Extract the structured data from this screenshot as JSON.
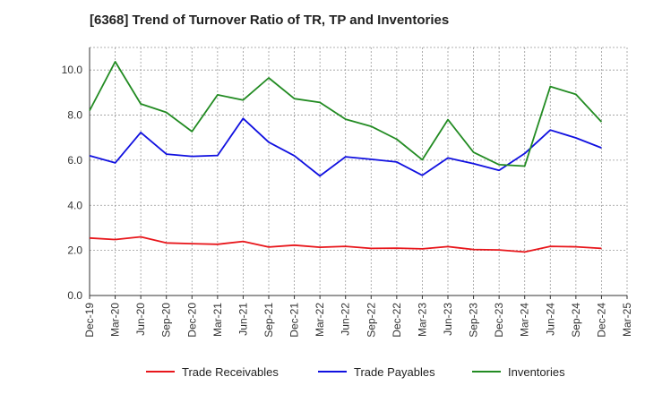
{
  "chart_data": {
    "type": "line",
    "title": "[6368]  Trend of Turnover Ratio of TR, TP and Inventories",
    "xlabel": "",
    "ylabel": "",
    "categories": [
      "Dec-19",
      "Mar-20",
      "Jun-20",
      "Sep-20",
      "Dec-20",
      "Mar-21",
      "Jun-21",
      "Sep-21",
      "Dec-21",
      "Mar-22",
      "Jun-22",
      "Sep-22",
      "Dec-22",
      "Mar-23",
      "Jun-23",
      "Sep-23",
      "Dec-23",
      "Mar-24",
      "Jun-24",
      "Sep-24",
      "Dec-24",
      "Mar-25"
    ],
    "ylim": [
      0,
      11
    ],
    "yticks": [
      0.0,
      2.0,
      4.0,
      6.0,
      8.0,
      10.0
    ],
    "ytick_labels": [
      "0.0",
      "2.0",
      "4.0",
      "6.0",
      "8.0",
      "10.0"
    ],
    "grid": true,
    "legend_position": "bottom",
    "series": [
      {
        "name": "Trade Receivables",
        "color": "#e8161b",
        "values": [
          2.55,
          2.48,
          2.6,
          2.33,
          2.3,
          2.27,
          2.4,
          2.15,
          2.23,
          2.14,
          2.18,
          2.09,
          2.1,
          2.07,
          2.17,
          2.04,
          2.02,
          1.93,
          2.18,
          2.16,
          2.09,
          null
        ]
      },
      {
        "name": "Trade Payables",
        "color": "#1010e0",
        "values": [
          6.2,
          5.88,
          7.23,
          6.27,
          6.17,
          6.21,
          7.85,
          6.8,
          6.2,
          5.3,
          6.15,
          6.04,
          5.92,
          5.33,
          6.1,
          5.85,
          5.55,
          6.3,
          7.34,
          6.99,
          6.55,
          null
        ]
      },
      {
        "name": "Inventories",
        "color": "#228b22",
        "values": [
          8.2,
          10.37,
          8.5,
          8.12,
          7.27,
          8.9,
          8.67,
          9.65,
          8.73,
          8.56,
          7.82,
          7.5,
          6.93,
          6.02,
          7.8,
          6.35,
          5.8,
          5.74,
          9.27,
          8.92,
          7.7,
          null
        ]
      }
    ]
  }
}
